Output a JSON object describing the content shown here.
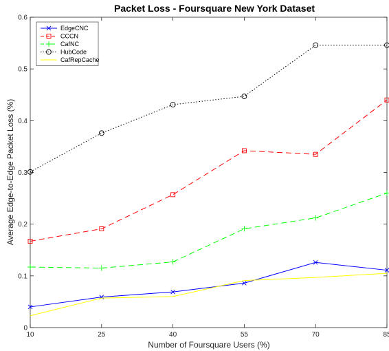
{
  "chart_data": {
    "type": "line",
    "title": "Packet Loss - Foursquare New York Dataset",
    "xlabel": "Number of Foursquare Users (%)",
    "ylabel": "Average Edge-to-Edge Packet Loss (%)",
    "x": [
      10,
      25,
      40,
      55,
      70,
      85
    ],
    "xticks": [
      "10",
      "25",
      "40",
      "55",
      "70",
      "85"
    ],
    "yticks": [
      "0",
      "0.1",
      "0.2",
      "0.3",
      "0.4",
      "0.5",
      "0.6"
    ],
    "xlim": [
      10,
      85
    ],
    "ylim": [
      0,
      0.6
    ],
    "grid": false,
    "legend": "top-left",
    "series": [
      {
        "name": "EdgeCNC",
        "color": "#0000ff",
        "marker": "x",
        "dash": "solid",
        "values": [
          0.04,
          0.059,
          0.069,
          0.086,
          0.126,
          0.111
        ]
      },
      {
        "name": "CCCN",
        "color": "#ff0000",
        "marker": "square",
        "dash": "dashed",
        "values": [
          0.167,
          0.191,
          0.257,
          0.342,
          0.335,
          0.44
        ]
      },
      {
        "name": "CafNC",
        "color": "#00ff00",
        "marker": "plus",
        "dash": "dashed",
        "values": [
          0.117,
          0.115,
          0.127,
          0.191,
          0.212,
          0.26
        ]
      },
      {
        "name": "HubCode",
        "color": "#000000",
        "marker": "circle",
        "dash": "dotted",
        "values": [
          0.301,
          0.376,
          0.431,
          0.447,
          0.546,
          0.546
        ]
      },
      {
        "name": "CafRepCache",
        "color": "#ffff00",
        "marker": "none",
        "dash": "solid",
        "values": [
          0.023,
          0.057,
          0.06,
          0.091,
          0.097,
          0.105
        ]
      }
    ]
  }
}
